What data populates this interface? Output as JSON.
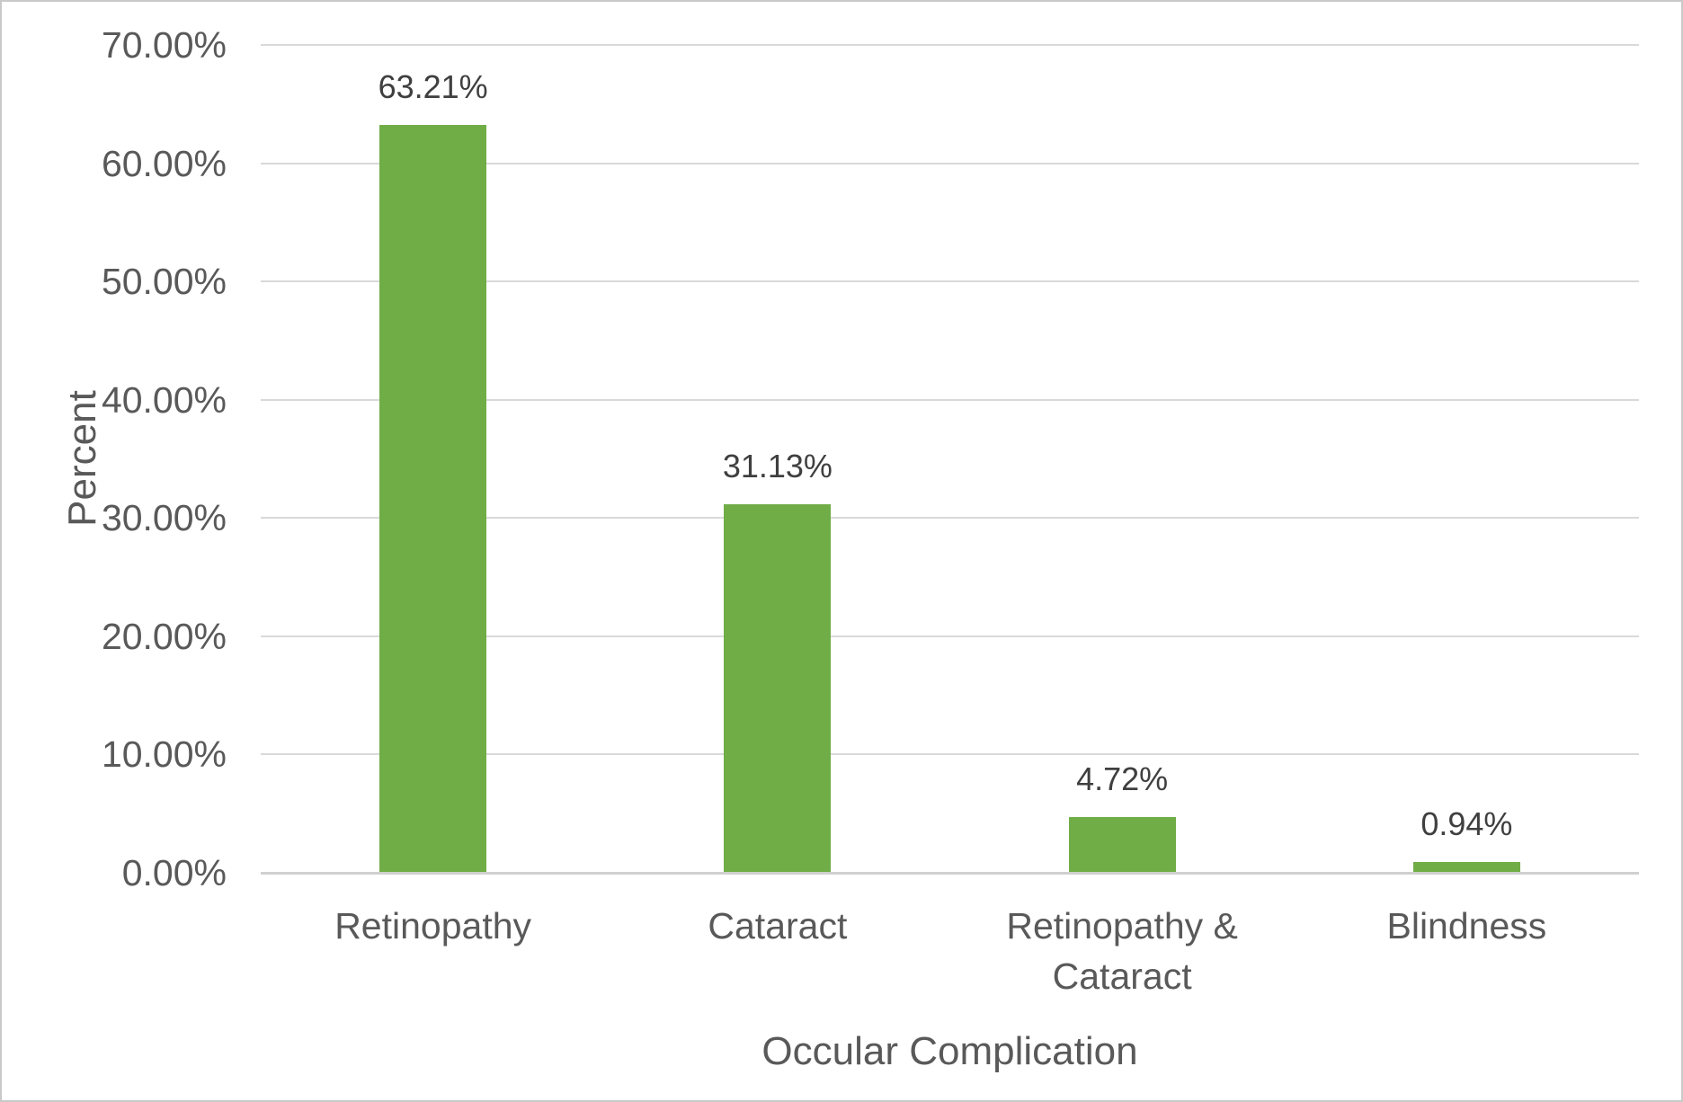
{
  "chart_data": {
    "type": "bar",
    "title": "",
    "xlabel": "Occular Complication",
    "ylabel": "Percent",
    "categories": [
      "Retinopathy",
      "Cataract",
      "Retinopathy & Cataract",
      "Blindness"
    ],
    "values": [
      63.21,
      31.13,
      4.72,
      0.94
    ],
    "value_labels": [
      "63.21%",
      "31.13%",
      "4.72%",
      "0.94%"
    ],
    "ylim": [
      0,
      70
    ],
    "ytick_step": 10,
    "ytick_labels": [
      "0.00%",
      "10.00%",
      "20.00%",
      "30.00%",
      "40.00%",
      "50.00%",
      "60.00%",
      "70.00%"
    ],
    "grid": "horizontal",
    "legend_position": "none",
    "bar_color": "#70AD47"
  },
  "colors": {
    "bar": "#70AD47",
    "gridline": "#D9D9D9",
    "axis_line": "#D0D0D0",
    "axis_text": "#595959",
    "data_label_text": "#3F3F3F",
    "frame_border": "#C9C9C9",
    "background": "#FFFFFF"
  }
}
